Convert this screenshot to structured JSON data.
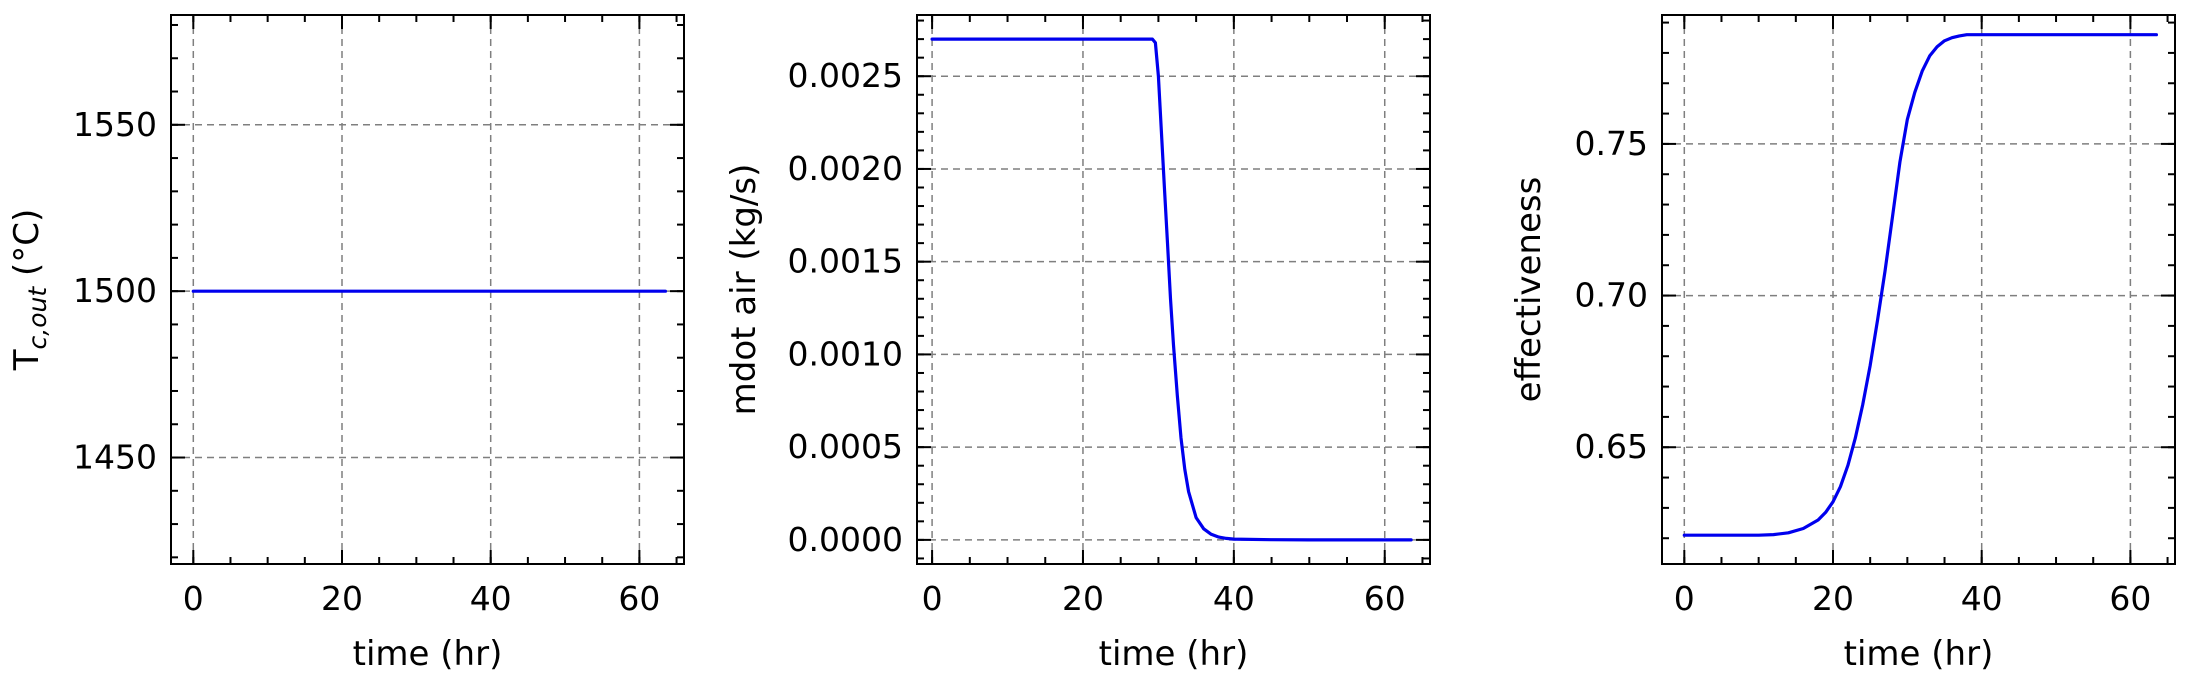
{
  "chart_data": [
    {
      "type": "line",
      "xlabel": "time (hr)",
      "ylabel": "T",
      "ylabel_subscript": "c,out",
      "ylabel_unit": " (°C)",
      "xlim": [
        -3,
        66
      ],
      "ylim": [
        1418,
        1583
      ],
      "xticks": [
        0,
        20,
        40,
        60
      ],
      "xtick_labels": [
        "0",
        "20",
        "40",
        "60"
      ],
      "yticks": [
        1450,
        1500,
        1550
      ],
      "ytick_labels": [
        "1450",
        "1500",
        "1550"
      ],
      "grid": true,
      "color": "#0000ee",
      "series": [
        {
          "x": [
            0,
            10,
            20,
            30,
            40,
            50,
            63.5
          ],
          "y": [
            1500,
            1500,
            1500,
            1500,
            1500,
            1500,
            1500
          ]
        }
      ]
    },
    {
      "type": "line",
      "xlabel": "time (hr)",
      "ylabel": "mdot air (kg/s)",
      "xlim": [
        -2,
        66
      ],
      "ylim": [
        -0.00013,
        0.00283
      ],
      "xticks": [
        0,
        20,
        40,
        60
      ],
      "xtick_labels": [
        "0",
        "20",
        "40",
        "60"
      ],
      "yticks": [
        0,
        0.0005,
        0.001,
        0.0015,
        0.002,
        0.0025
      ],
      "ytick_labels": [
        "0.0000",
        "0.0005",
        "0.0010",
        "0.0015",
        "0.0020",
        "0.0025"
      ],
      "grid": true,
      "color": "#0000ee",
      "series": [
        {
          "x": [
            0,
            10,
            20,
            25,
            28,
            29.2,
            29.6,
            30.0,
            30.4,
            30.8,
            31.2,
            31.6,
            32.0,
            32.5,
            33.0,
            33.5,
            34.0,
            35.0,
            36.0,
            37.0,
            38.0,
            39.0,
            40.0,
            45.0,
            50.0,
            55.0,
            60.0,
            63.5
          ],
          "y": [
            0.0027,
            0.0027,
            0.0027,
            0.0027,
            0.0027,
            0.0027,
            0.00268,
            0.0025,
            0.0022,
            0.0019,
            0.0016,
            0.0013,
            0.00105,
            0.00078,
            0.00055,
            0.00038,
            0.00026,
            0.00012,
            6e-05,
            3e-05,
            1.5e-05,
            8e-06,
            4e-06,
            1e-06,
            0,
            0,
            0,
            0
          ]
        }
      ]
    },
    {
      "type": "line",
      "xlabel": "time (hr)",
      "ylabel": "effectiveness",
      "xlim": [
        -3,
        66
      ],
      "ylim": [
        0.6115,
        0.7925
      ],
      "xticks": [
        0,
        20,
        40,
        60
      ],
      "xtick_labels": [
        "0",
        "20",
        "40",
        "60"
      ],
      "yticks": [
        0.65,
        0.7,
        0.75
      ],
      "ytick_labels": [
        "0.65",
        "0.70",
        "0.75"
      ],
      "grid": true,
      "color": "#0000ee",
      "series": [
        {
          "x": [
            0,
            5,
            10,
            12,
            14,
            16,
            18,
            19,
            20,
            21,
            22,
            23,
            24,
            25,
            26,
            27,
            28,
            29,
            30,
            31,
            32,
            33,
            34,
            35,
            36,
            37,
            38,
            40,
            45,
            50,
            55,
            60,
            63.5
          ],
          "y": [
            0.621,
            0.621,
            0.621,
            0.6212,
            0.6218,
            0.6232,
            0.626,
            0.6285,
            0.632,
            0.637,
            0.644,
            0.653,
            0.664,
            0.677,
            0.692,
            0.708,
            0.726,
            0.744,
            0.758,
            0.767,
            0.774,
            0.779,
            0.782,
            0.784,
            0.785,
            0.7856,
            0.786,
            0.786,
            0.786,
            0.786,
            0.786,
            0.786,
            0.786
          ]
        }
      ]
    }
  ]
}
